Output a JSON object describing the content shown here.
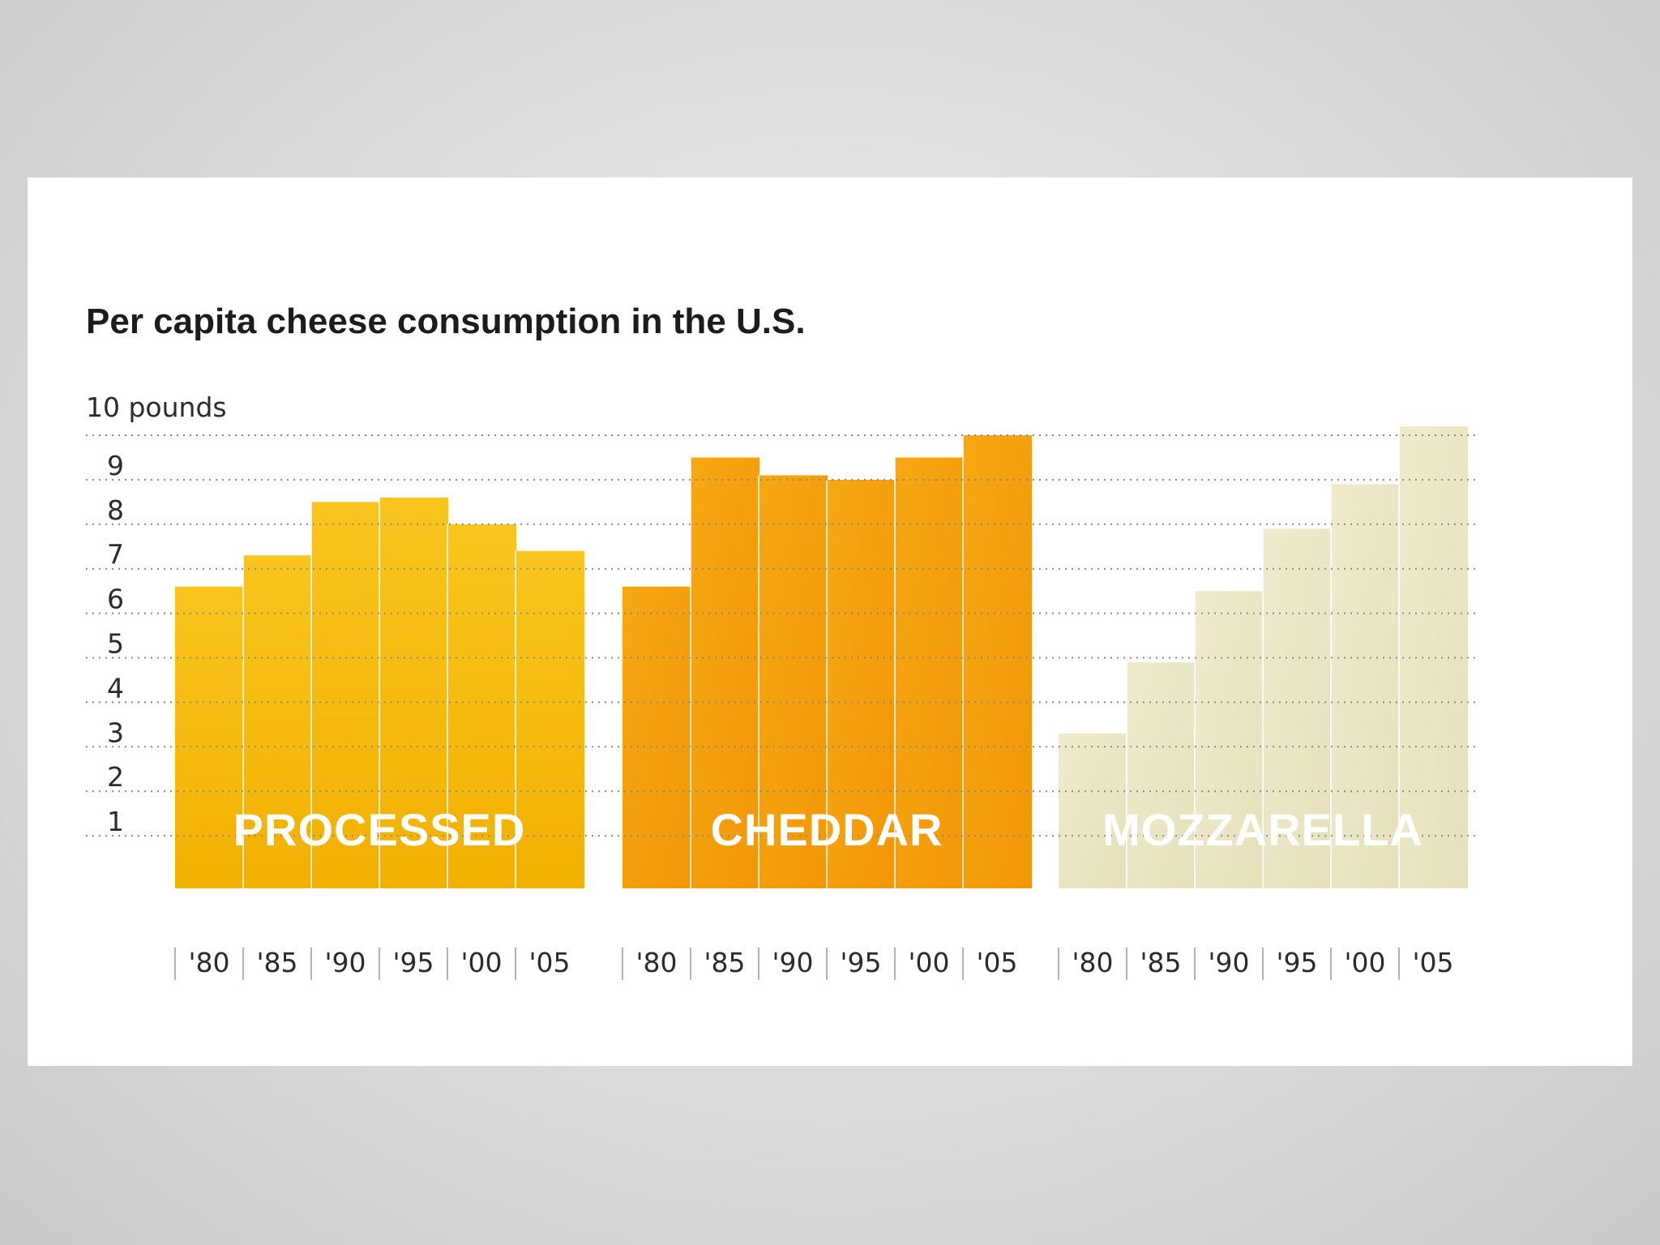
{
  "chart_data": {
    "type": "bar",
    "title": "Per capita cheese consumption in the U.S.",
    "ylabel": "pounds",
    "y_top_label": "10 pounds",
    "ylim": [
      0,
      10
    ],
    "yticks": [
      "1",
      "2",
      "3",
      "4",
      "5",
      "6",
      "7",
      "8",
      "9"
    ],
    "categories": [
      "'80",
      "'85",
      "'90",
      "'95",
      "'00",
      "'05"
    ],
    "grid": true,
    "series": [
      {
        "name": "PROCESSED",
        "color": "#f7bd0c",
        "values": [
          6.6,
          7.3,
          8.5,
          8.6,
          8.0,
          7.4
        ]
      },
      {
        "name": "CHEDDAR",
        "color": "#f5a00f",
        "values": [
          6.6,
          9.5,
          9.1,
          9.0,
          9.5,
          10.0
        ]
      },
      {
        "name": "MOZZARELLA",
        "color": "#ece8c6",
        "values": [
          3.3,
          4.9,
          6.5,
          7.9,
          8.9,
          10.2
        ]
      }
    ]
  }
}
